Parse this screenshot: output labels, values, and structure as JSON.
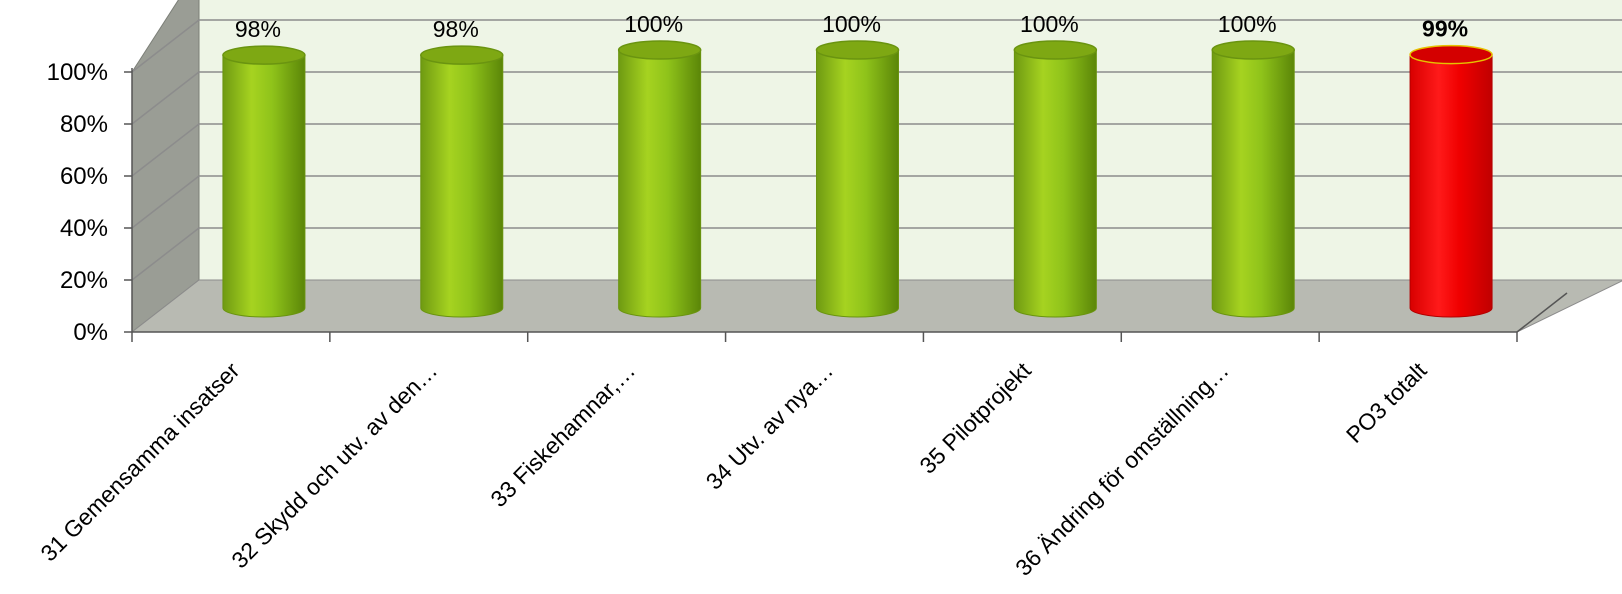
{
  "chart_data": {
    "type": "bar",
    "style": "3d-cylinder",
    "categories": [
      "31 Gemensamma insatser",
      "32 Skydd och utv. av den…",
      "33 Fiskehamnar,…",
      "34 Utv. av nya…",
      "35 Pilotprojekt",
      "36 Ändring för omställning…",
      "PO3 totalt"
    ],
    "values": [
      98,
      98,
      100,
      100,
      100,
      100,
      99
    ],
    "data_labels": [
      "98%",
      "98%",
      "100%",
      "100%",
      "100%",
      "100%",
      "99%"
    ],
    "highlighted_category": "PO3 totalt",
    "ylim": [
      0,
      100
    ],
    "y_ticks": [
      "0%",
      "20%",
      "40%",
      "60%",
      "80%",
      "100%"
    ],
    "grid": true,
    "legend": "none",
    "colors": {
      "bar": "#8fc31f",
      "bar_dark": "#5d8a0a",
      "highlight_bar": "#ff0000",
      "highlight_dark": "#b30000",
      "back_wall": "#eef5e6",
      "side_wall": "#9a9d95",
      "floor": "#b8bab2",
      "gridline": "#8c8c8c"
    }
  }
}
